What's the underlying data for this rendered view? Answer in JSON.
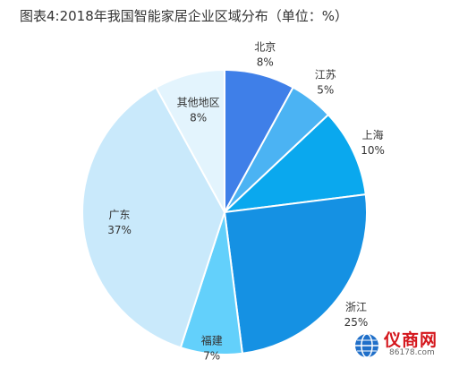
{
  "page": {
    "title": "图表4:2018年我国智能家居企业区域分布（单位：%）"
  },
  "chart_data": {
    "type": "pie",
    "title": "图表4:2018年我国智能家居企业区域分布（单位：%）",
    "unit": "%",
    "start": "12 o'clock, clockwise",
    "slices": [
      {
        "name": "北京",
        "value": 8,
        "color": "#3f7fe8",
        "labelText": "8%"
      },
      {
        "name": "江苏",
        "value": 5,
        "color": "#4bb3f3",
        "labelText": "5%"
      },
      {
        "name": "上海",
        "value": 10,
        "color": "#0aa8ee",
        "labelText": "10%"
      },
      {
        "name": "浙江",
        "value": 25,
        "color": "#1591e3",
        "labelText": "25%"
      },
      {
        "name": "福建",
        "value": 7,
        "color": "#63d0fb",
        "labelText": "7%"
      },
      {
        "name": "广东",
        "value": 37,
        "color": "#c9e9fb",
        "labelText": "37%"
      },
      {
        "name": "其他地区",
        "value": 8,
        "color": "#e3f4fd",
        "labelText": "8%"
      }
    ]
  },
  "watermark": {
    "brand": "仪商网",
    "domain": "86178.com"
  }
}
